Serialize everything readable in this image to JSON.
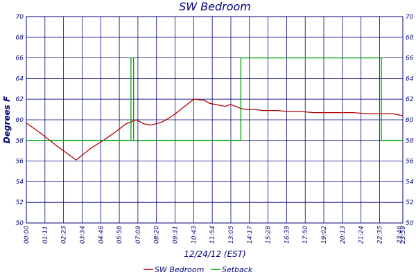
{
  "chart_data": {
    "type": "line",
    "title": "SW Bedroom",
    "xlabel": "12/24/12 (EST)",
    "ylabel": "Degrees F",
    "ylim": [
      50,
      70
    ],
    "yticks": [
      50,
      52,
      54,
      56,
      58,
      60,
      62,
      64,
      66,
      68,
      70
    ],
    "xlim": [
      0,
      1439
    ],
    "xtick_labels": [
      "00:00",
      "01:11",
      "02:23",
      "03:34",
      "04:46",
      "05:58",
      "07:09",
      "08:20",
      "09:31",
      "10:43",
      "11:54",
      "13:05",
      "14:17",
      "15:28",
      "16:39",
      "17:50",
      "19:02",
      "20:13",
      "21:24",
      "22:35",
      "23:46",
      "23:59"
    ],
    "grid": true,
    "legend_position": "bottom-center",
    "series": [
      {
        "name": "SW Bedroom",
        "color": "#b00000",
        "x": [
          0,
          60,
          120,
          190,
          214,
          250,
          300,
          350,
          380,
          400,
          420,
          450,
          480,
          520,
          560,
          600,
          640,
          680,
          700,
          720,
          740,
          760,
          780,
          800,
          820,
          840,
          860,
          880,
          900,
          920,
          960,
          1000,
          1050,
          1100,
          1150,
          1200,
          1250,
          1300,
          1350,
          1400,
          1439
        ],
        "y": [
          59.7,
          58.6,
          57.4,
          56.1,
          56.6,
          57.3,
          58.1,
          59.0,
          59.6,
          59.8,
          60.0,
          59.6,
          59.5,
          59.8,
          60.4,
          61.2,
          62.0,
          61.9,
          61.6,
          61.5,
          61.4,
          61.3,
          61.5,
          61.3,
          61.1,
          61.0,
          61.0,
          61.0,
          60.9,
          60.9,
          60.9,
          60.8,
          60.8,
          60.7,
          60.7,
          60.7,
          60.7,
          60.6,
          60.6,
          60.6,
          60.4
        ]
      },
      {
        "name": "Setback",
        "color": "#00a000",
        "x": [
          0,
          400,
          400,
          410,
          410,
          820,
          820,
          1357,
          1357,
          1439
        ],
        "y": [
          58,
          58,
          66,
          66,
          58,
          58,
          66,
          66,
          58,
          58
        ]
      }
    ]
  }
}
